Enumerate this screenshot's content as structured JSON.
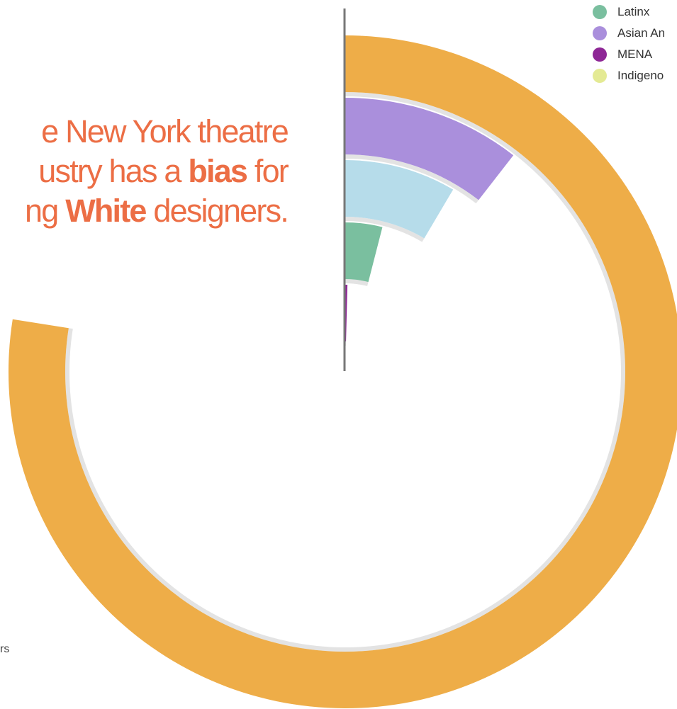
{
  "headline": {
    "line1": "e New York theatre",
    "line2_pre": "ustry has a ",
    "line2_bold": "bias",
    "line2_post": " for",
    "line3_pre": "ng ",
    "line3_bold": "White",
    "line3_post": " designers."
  },
  "footnote": "rs",
  "chart_data": {
    "type": "radial-bar",
    "legend_position": "top-right",
    "max_value": 1.0,
    "series": [
      {
        "name": "",
        "value": 0.775,
        "color": "#eead48"
      },
      {
        "name": "Asian An",
        "value": 0.105,
        "color": "#aa8fdc"
      },
      {
        "name": "",
        "value": 0.085,
        "color": "#b6dcea"
      },
      {
        "name": "Latinx",
        "value": 0.04,
        "color": "#7abf9f"
      },
      {
        "name": "MENA",
        "value": 0.004,
        "color": "#8e2796"
      },
      {
        "name": "Indigeno",
        "value": 0,
        "color": "#e4ea94"
      }
    ],
    "legend": [
      {
        "name": "Latinx",
        "color": "#7abf9f"
      },
      {
        "name": "Asian An",
        "color": "#aa8fdc"
      },
      {
        "name": "MENA",
        "color": "#8e2796"
      },
      {
        "name": "Indigeno",
        "color": "#e4ea94"
      }
    ]
  }
}
